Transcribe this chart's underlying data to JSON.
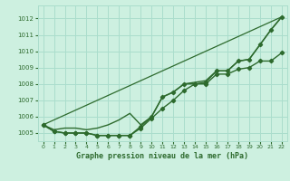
{
  "title": "Graphe pression niveau de la mer (hPa)",
  "background_color": "#cdf0e0",
  "grid_color": "#aaddcc",
  "line_color": "#2d6a2d",
  "xlim": [
    -0.5,
    22.5
  ],
  "ylim": [
    1004.5,
    1012.8
  ],
  "yticks": [
    1005,
    1006,
    1007,
    1008,
    1009,
    1010,
    1011,
    1012
  ],
  "xticks": [
    0,
    1,
    2,
    3,
    4,
    5,
    6,
    7,
    8,
    9,
    10,
    11,
    12,
    13,
    14,
    15,
    16,
    17,
    18,
    19,
    20,
    21,
    22
  ],
  "series": {
    "line_straight": {
      "x": [
        0,
        22
      ],
      "y": [
        1005.5,
        1012.1
      ],
      "marker": null,
      "markersize": 0,
      "linewidth": 0.9,
      "zorder": 1
    },
    "line_upper": {
      "x": [
        0,
        1,
        2,
        3,
        4,
        5,
        6,
        7,
        8,
        9,
        10,
        11,
        12,
        13,
        14,
        15,
        16,
        17,
        18,
        19,
        20,
        21,
        22
      ],
      "y": [
        1005.5,
        1005.2,
        1005.3,
        1005.3,
        1005.2,
        1005.3,
        1005.5,
        1005.8,
        1006.2,
        1005.5,
        1006.0,
        1007.2,
        1007.5,
        1008.0,
        1008.1,
        1008.2,
        1008.8,
        1008.8,
        1009.4,
        1009.5,
        1010.4,
        1011.3,
        1012.1
      ],
      "marker": null,
      "markersize": 0,
      "linewidth": 1.0,
      "zorder": 2
    },
    "line_mid_marker": {
      "x": [
        0,
        1,
        2,
        3,
        4,
        5,
        6,
        7,
        8,
        9,
        10,
        11,
        12,
        13,
        14,
        15,
        16,
        17,
        18,
        19,
        20,
        21,
        22
      ],
      "y": [
        1005.5,
        1005.1,
        1005.0,
        1005.0,
        1005.0,
        1004.85,
        1004.85,
        1004.85,
        1004.85,
        1005.4,
        1006.0,
        1007.2,
        1007.5,
        1008.0,
        1008.0,
        1008.1,
        1008.8,
        1008.8,
        1009.4,
        1009.5,
        1010.4,
        1011.3,
        1012.1
      ],
      "marker": "D",
      "markersize": 2.2,
      "linewidth": 1.0,
      "zorder": 3
    },
    "line_lower_marker": {
      "x": [
        0,
        1,
        2,
        3,
        4,
        5,
        6,
        7,
        8,
        9,
        10,
        11,
        12,
        13,
        14,
        15,
        16,
        17,
        18,
        19,
        20,
        21,
        22
      ],
      "y": [
        1005.5,
        1005.1,
        1005.0,
        1005.0,
        1005.0,
        1004.85,
        1004.85,
        1004.85,
        1004.85,
        1005.3,
        1005.9,
        1006.5,
        1007.0,
        1007.6,
        1008.0,
        1008.0,
        1008.6,
        1008.6,
        1008.9,
        1009.0,
        1009.4,
        1009.4,
        1009.9
      ],
      "marker": "D",
      "markersize": 2.2,
      "linewidth": 1.0,
      "zorder": 3
    }
  }
}
